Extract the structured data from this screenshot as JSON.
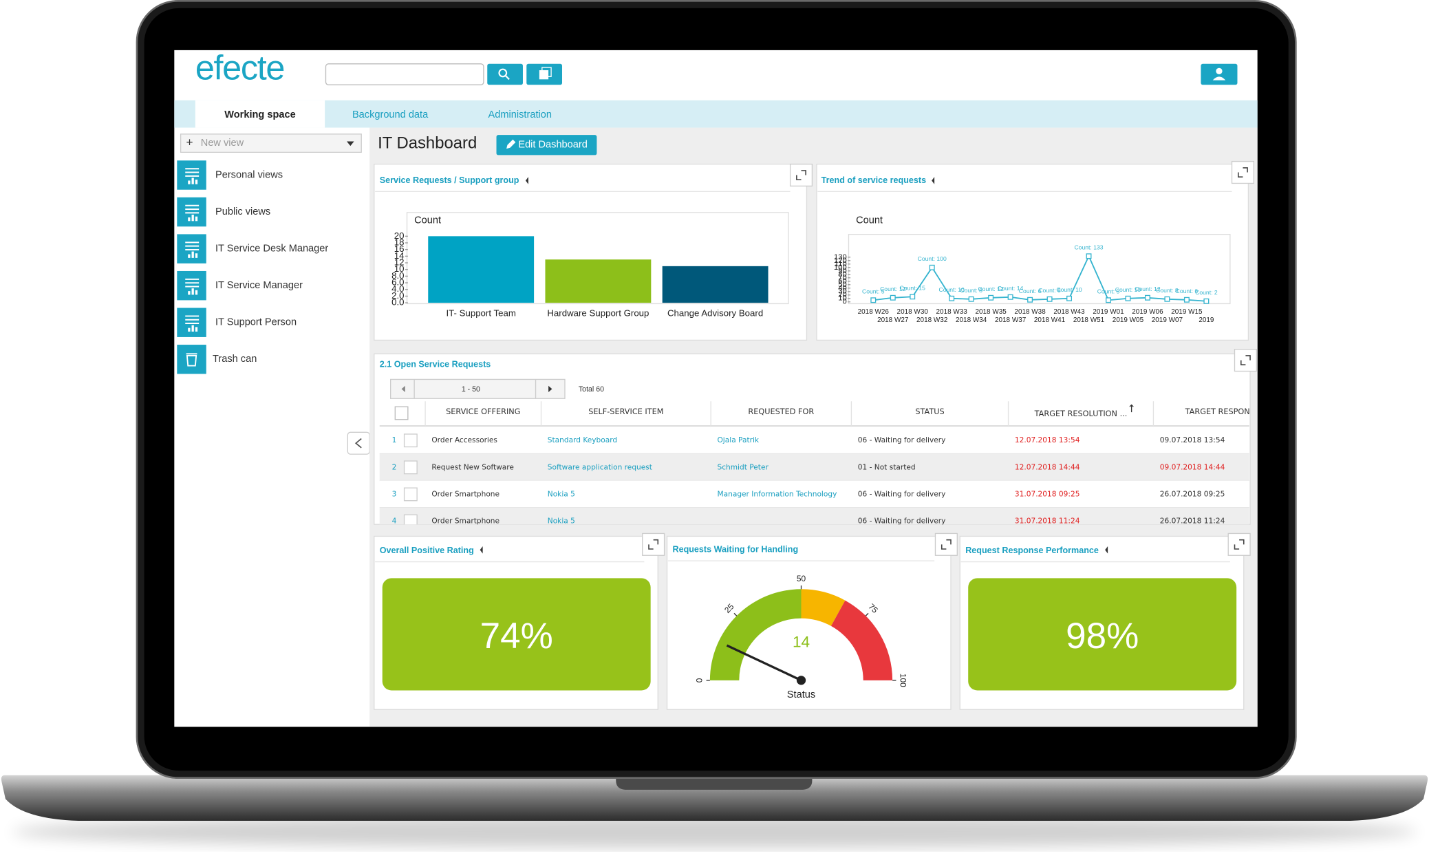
{
  "header": {
    "logo": "efecte",
    "tabs": [
      "Working space",
      "Background data",
      "Administration"
    ]
  },
  "sidebar": {
    "new_view": "New view",
    "items": [
      "Personal views",
      "Public views",
      "IT Service Desk Manager",
      "IT Service Manager",
      "IT Support Person",
      "Trash can"
    ]
  },
  "page": {
    "title": "IT Dashboard",
    "edit_button": "Edit Dashboard"
  },
  "chart_data": [
    {
      "type": "bar",
      "title": "Service Requests / Support group",
      "ylabel": "Count",
      "categories": [
        "IT- Support Team",
        "Hardware Support Group",
        "Change Advisory Board"
      ],
      "values": [
        20,
        13,
        11
      ],
      "colors": [
        "#00a3c4",
        "#8dbf1a",
        "#00587a"
      ],
      "ylim": [
        0,
        20
      ],
      "yticks": [
        {
          "value": 0,
          "label": "0.0"
        },
        {
          "value": 2,
          "label": "2.0"
        },
        {
          "value": 4,
          "label": "4.0"
        },
        {
          "value": 6,
          "label": "6.0"
        },
        {
          "value": 8,
          "label": "8.0"
        },
        10,
        12,
        14,
        16,
        18,
        20
      ]
    },
    {
      "type": "line",
      "title": "Trend of service requests",
      "ylabel": "Count",
      "categories": [
        "2018 W26",
        "2018 W27",
        "2018 W30",
        "2018 W32",
        "2018 W33",
        "2018 W34",
        "2018 W35",
        "2018 W37",
        "2018 W38",
        "2018 W41",
        "2018 W43",
        "2018 W51",
        "2019 W01",
        "2019 W05",
        "2019 W06",
        "2019 W07",
        "2019 W15",
        "2019"
      ],
      "values": [
        5,
        12,
        15,
        100,
        10,
        8,
        12,
        14,
        6,
        8,
        10,
        133,
        5,
        10,
        12,
        8,
        6,
        2
      ],
      "value_labels": [
        "Count: 5",
        "Count: 12",
        "Count: 15",
        "Count: 100",
        "Count: 10",
        "Count: 8",
        "Count: 12",
        "Count: 14",
        "Count: 6",
        "Count: 8",
        "Count: 10",
        "Count: 133",
        "Count: 5",
        "Count: 10",
        "Count: 12",
        "Count: 8",
        "Count: 6",
        "Count: 2"
      ],
      "color": "#35b4cf",
      "ylim": [
        0,
        130
      ],
      "yticks": [
        0,
        10,
        20,
        30,
        40,
        50,
        60,
        70,
        80,
        90,
        100,
        110,
        120,
        130
      ]
    },
    {
      "type": "gauge",
      "title": "Requests Waiting for Handling",
      "label": "Status",
      "value": 14,
      "ylim": [
        0,
        100
      ],
      "yticks": [
        0,
        25,
        50,
        75,
        100
      ],
      "bands": [
        {
          "from": 0,
          "to": 50,
          "color": "#8dbf1a"
        },
        {
          "from": 50,
          "to": 66,
          "color": "#f7b500"
        },
        {
          "from": 66,
          "to": 100,
          "color": "#e8383d"
        }
      ]
    }
  ],
  "table": {
    "title": "2.1 Open Service Requests",
    "pager": "1 - 50",
    "total": "Total 60",
    "columns": [
      "SERVICE OFFERING",
      "SELF-SERVICE ITEM",
      "REQUESTED FOR",
      "STATUS",
      "TARGET RESOLUTION ...",
      "TARGET RESPONS"
    ],
    "rows": [
      [
        "1",
        "Order Accessories",
        "Standard Keyboard",
        "Ojala Patrik",
        "06 - Waiting for delivery",
        "12.07.2018 13:54",
        "09.07.2018 13:54"
      ],
      [
        "2",
        "Request New Software",
        "Software application request",
        "Schmidt Peter",
        "01 - Not started",
        "12.07.2018 14:44",
        "09.07.2018 14:44"
      ],
      [
        "3",
        "Order Smartphone",
        "Nokia 5",
        "Manager Information Technology",
        "06 - Waiting for delivery",
        "31.07.2018 09:25",
        "26.07.2018 09:25"
      ],
      [
        "4",
        "Order Smartphone",
        "Nokia 5",
        null,
        "06 - Waiting for delivery",
        "31.07.2018 11:24",
        "26.07.2018 11:24"
      ]
    ]
  },
  "tiles": [
    {
      "title": "Overall Positive Rating",
      "value": "74%"
    },
    {
      "title": "Request Response Performance",
      "value": "98%"
    }
  ]
}
